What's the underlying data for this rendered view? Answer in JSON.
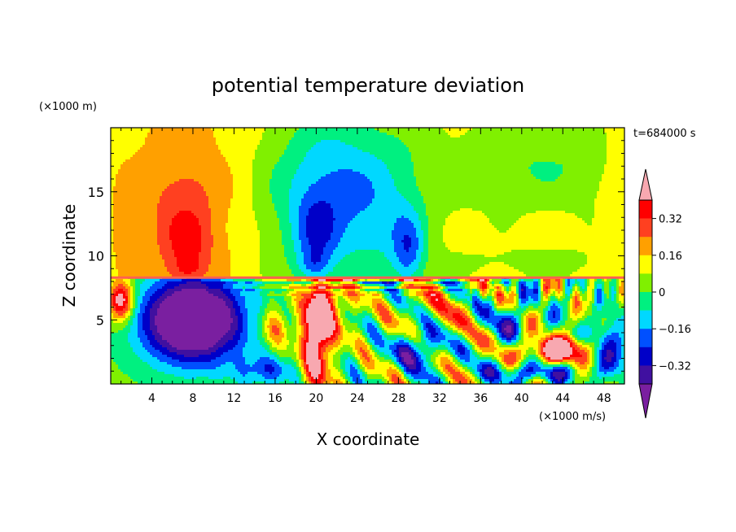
{
  "chart_data": {
    "type": "heatmap",
    "title": "potential temperature deviation",
    "xlabel": "X coordinate",
    "ylabel": "Z coordinate",
    "x_unit": "(×1000 m/s)",
    "y_unit": "(×1000 m)",
    "time_label": "t=684000 s",
    "xlim": [
      0,
      50
    ],
    "ylim": [
      0,
      20
    ],
    "x_ticks": [
      4,
      8,
      12,
      16,
      20,
      24,
      28,
      32,
      36,
      40,
      44,
      48
    ],
    "y_ticks": [
      5,
      10,
      15
    ],
    "colorbar": {
      "levels": [
        -0.4,
        -0.32,
        -0.24,
        -0.16,
        -0.08,
        0,
        0.08,
        0.16,
        0.24,
        0.32,
        0.4
      ],
      "tick_labels": [
        "0.32",
        "0.16",
        "0",
        "−0.16",
        "−0.32"
      ],
      "tick_values": [
        0.32,
        0.16,
        0,
        -0.16,
        -0.32
      ],
      "colors": [
        "#7a1fa0",
        "#4010a0",
        "#0000c8",
        "#0050ff",
        "#00d8ff",
        "#00f080",
        "#80f000",
        "#ffff00",
        "#ffa000",
        "#ff4020",
        "#ff0000",
        "#f8a8b0"
      ],
      "extend": "both"
    },
    "layer_boundary_z": 8.3,
    "features": [
      {
        "x": 7,
        "z": 12,
        "value": 0.3
      },
      {
        "x": 8,
        "z": 5,
        "value": -0.4
      },
      {
        "x": 20,
        "z": 11,
        "value": -0.3
      },
      {
        "x": 29,
        "z": 11,
        "value": -0.3
      }
    ]
  }
}
